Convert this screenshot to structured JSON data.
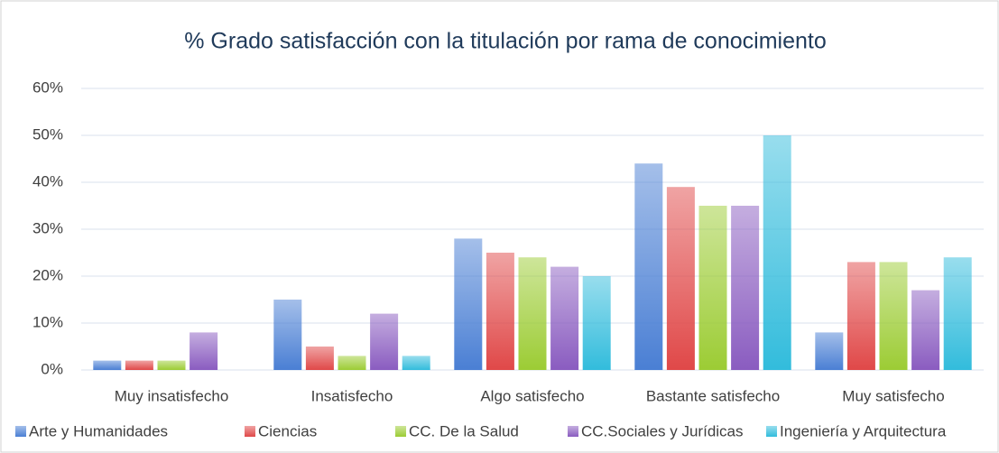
{
  "chart_data": {
    "type": "bar",
    "title": "% Grado satisfacción con la titulación por rama de conocimiento",
    "categories": [
      "Muy insatisfecho",
      "Insatisfecho",
      "Algo satisfecho",
      "Bastante satisfecho",
      "Muy satisfecho"
    ],
    "series": [
      {
        "name": "Arte y Humanidades",
        "color": "#4a7fd4",
        "values": [
          2,
          15,
          28,
          44,
          8
        ]
      },
      {
        "name": "Ciencias",
        "color": "#e04848",
        "values": [
          2,
          5,
          25,
          39,
          23
        ]
      },
      {
        "name": "CC. De la Salud",
        "color": "#9ccc34",
        "values": [
          2,
          3,
          24,
          35,
          23
        ]
      },
      {
        "name": "CC.Sociales y Jurídicas",
        "color": "#8a5cc0",
        "values": [
          8,
          12,
          22,
          35,
          17
        ]
      },
      {
        "name": "Ingeniería y Arquitectura",
        "color": "#32bcdc",
        "values": [
          0,
          3,
          20,
          50,
          24
        ]
      }
    ],
    "ylim": [
      0,
      60
    ],
    "yticks": [
      {
        "value": 0,
        "label": "0%"
      },
      {
        "value": 10,
        "label": "10%"
      },
      {
        "value": 20,
        "label": "20%"
      },
      {
        "value": 30,
        "label": "30%"
      },
      {
        "value": 40,
        "label": "40%"
      },
      {
        "value": 50,
        "label": "50%"
      },
      {
        "value": 60,
        "label": "60%"
      }
    ],
    "grid": true,
    "legend": "bottom"
  }
}
